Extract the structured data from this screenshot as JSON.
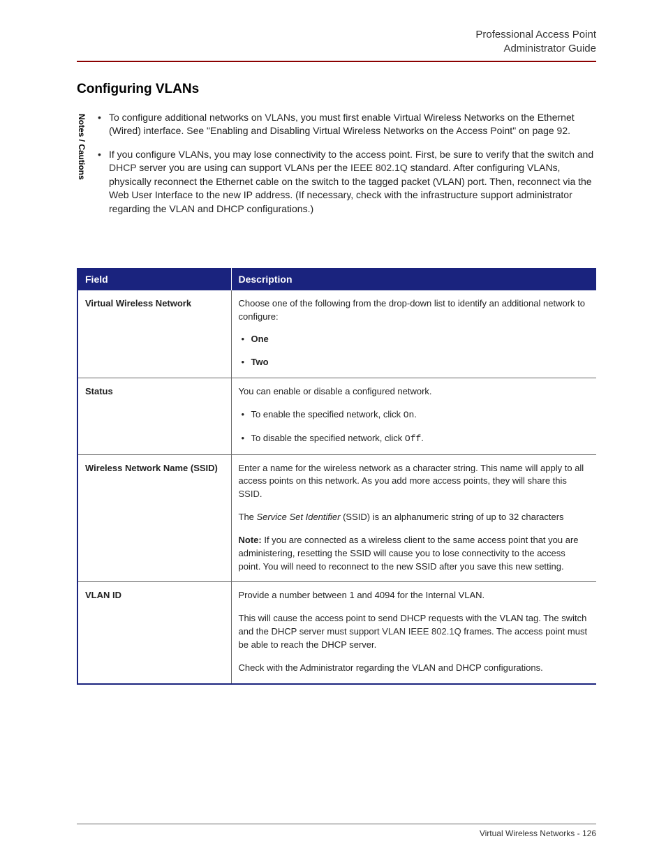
{
  "colors": {
    "accent_rule": "#8b0000",
    "table_header_bg": "#1a237e",
    "table_header_fg": "#ffffff",
    "table_border": "#666666",
    "text": "#222222",
    "background": "#ffffff"
  },
  "typography": {
    "body_family": "Arial, Helvetica, sans-serif",
    "body_size_pt": 10,
    "heading_size_pt": 14,
    "heading_weight": "bold"
  },
  "header": {
    "line1": "Professional Access Point",
    "line2": "Administrator Guide"
  },
  "section_title": "Configuring VLANs",
  "notes_label": "Notes / Cautions",
  "notes": {
    "items": [
      {
        "pre": "To configure additional networks on ",
        "link1": "VLAN",
        "post": "s, you must first enable Virtual Wireless Networks on the Ethernet (Wired) interface. See \"Enabling and Disabling Virtual Wireless Networks on the Access Point\" on page 92."
      },
      {
        "pre": "If you configure VLANs, you may lose connectivity to the access point. First, be sure to verify that the switch and ",
        "link1": "DHCP",
        "mid": " server you are using can support VLANs per the ",
        "link2": "IEEE",
        "mid2": " ",
        "link3": "802.1Q",
        "post": " standard. After configuring VLANs, physically reconnect the Ethernet cable on the switch to the tagged packet (VLAN) port. Then, reconnect via the Web User Interface to the new IP address. (If necessary, check with the infrastructure support administrator regarding the VLAN and DHCP configurations.)"
      }
    ]
  },
  "table": {
    "headers": {
      "field": "Field",
      "description": "Description"
    },
    "rows": [
      {
        "field": "Virtual Wireless Network",
        "desc_intro": "Choose one of the following from the drop-down list to identify an additional network to configure:",
        "list": [
          "One",
          "Two"
        ]
      },
      {
        "field": "Status",
        "desc_intro": "You can enable or disable a configured network.",
        "list_rich": [
          {
            "pre": "To enable the specified network, click ",
            "mono": "On",
            "post": "."
          },
          {
            "pre": "To disable the specified network, click ",
            "mono": "Off",
            "post": "."
          }
        ]
      },
      {
        "field": "Wireless Network Name (SSID)",
        "p1_pre": "Enter a name for the wireless network as a character string. This name will apply to all access points on this network. As you add more access points, they will share this ",
        "p1_link": "SSID",
        "p1_post": ".",
        "p2_pre": "The ",
        "p2_italic": "Service Set Identifier",
        "p2_post": " (SSID) is an alphanumeric string of up to 32 characters",
        "p3_bold": "Note:",
        "p3_post": " If you are connected as a wireless client to the same access point that you are administering, resetting the SSID will cause you to lose connectivity to the access point. You will need to reconnect to the new SSID after you save this new setting."
      },
      {
        "field": "VLAN ID",
        "p1": "Provide a number between 1 and 4094 for the Internal VLAN.",
        "p2_pre": "This will cause the access point to send DHCP requests with the VLAN tag. The switch and the DHCP server must support ",
        "p2_link1": "VLAN",
        "p2_mid": " ",
        "p2_link2": "IEEE",
        "p2_mid2": " ",
        "p2_link3": "802.1Q",
        "p2_post": " frames. The access point must be able to reach the DHCP server.",
        "p3": "Check with the Administrator regarding the VLAN and DHCP configurations."
      }
    ]
  },
  "footer": {
    "text": "Virtual Wireless Networks - 126"
  }
}
